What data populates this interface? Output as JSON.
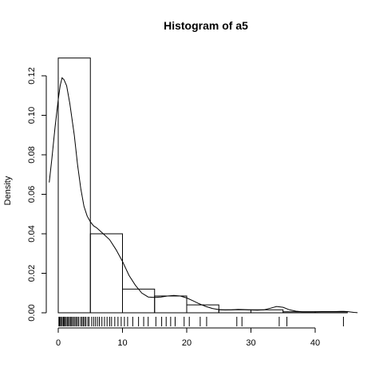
{
  "chart_data": {
    "type": "histogram",
    "title": "Histogram of  a5",
    "xlabel": "",
    "ylabel": "Density",
    "xlim": [
      -1,
      47
    ],
    "ylim": [
      0,
      0.13
    ],
    "bins": [
      {
        "x0": 0,
        "x1": 5,
        "density": 0.129
      },
      {
        "x0": 5,
        "x1": 10,
        "density": 0.04
      },
      {
        "x0": 10,
        "x1": 15,
        "density": 0.012
      },
      {
        "x0": 15,
        "x1": 20,
        "density": 0.0085
      },
      {
        "x0": 20,
        "x1": 25,
        "density": 0.004
      },
      {
        "x0": 25,
        "x1": 30,
        "density": 0.0015
      },
      {
        "x0": 30,
        "x1": 35,
        "density": 0.0015
      },
      {
        "x0": 35,
        "x1": 40,
        "density": 0.0005
      },
      {
        "x0": 40,
        "x1": 45,
        "density": 0.0005
      }
    ],
    "x_ticks": [
      {
        "value": 0,
        "label": "0"
      },
      {
        "value": 10,
        "label": "10"
      },
      {
        "value": 20,
        "label": "20"
      },
      {
        "value": 30,
        "label": "30"
      },
      {
        "value": 40,
        "label": "40"
      }
    ],
    "y_ticks": [
      {
        "value": 0,
        "label": "0.00"
      },
      {
        "value": 0.02,
        "label": "0.02"
      },
      {
        "value": 0.04,
        "label": "0.04"
      },
      {
        "value": 0.06,
        "label": "0.06"
      },
      {
        "value": 0.08,
        "label": "0.08"
      },
      {
        "value": 0.1,
        "label": "0.10"
      },
      {
        "value": 0.12,
        "label": "0.12"
      }
    ],
    "density_curve": [
      [
        -1.4,
        0.066
      ],
      [
        -1.0,
        0.078
      ],
      [
        -0.5,
        0.094
      ],
      [
        0.0,
        0.108
      ],
      [
        0.3,
        0.115
      ],
      [
        0.6,
        0.119
      ],
      [
        0.9,
        0.118
      ],
      [
        1.3,
        0.115
      ],
      [
        1.8,
        0.106
      ],
      [
        2.5,
        0.09
      ],
      [
        3.0,
        0.075
      ],
      [
        3.5,
        0.063
      ],
      [
        4.0,
        0.054
      ],
      [
        4.5,
        0.049
      ],
      [
        5.0,
        0.046
      ],
      [
        5.5,
        0.044
      ],
      [
        6.0,
        0.043
      ],
      [
        7.0,
        0.04
      ],
      [
        8.0,
        0.037
      ],
      [
        9.0,
        0.032
      ],
      [
        10.0,
        0.026
      ],
      [
        11.0,
        0.019
      ],
      [
        12.0,
        0.014
      ],
      [
        13.0,
        0.01
      ],
      [
        14.0,
        0.008
      ],
      [
        15.0,
        0.0078
      ],
      [
        16.0,
        0.008
      ],
      [
        17.0,
        0.0085
      ],
      [
        18.0,
        0.0088
      ],
      [
        19.0,
        0.0085
      ],
      [
        20.0,
        0.0075
      ],
      [
        21.0,
        0.006
      ],
      [
        22.0,
        0.0045
      ],
      [
        23.0,
        0.0032
      ],
      [
        24.0,
        0.0022
      ],
      [
        25.0,
        0.0016
      ],
      [
        26.0,
        0.0014
      ],
      [
        27.0,
        0.0015
      ],
      [
        28.0,
        0.0017
      ],
      [
        29.0,
        0.0016
      ],
      [
        30.0,
        0.0014
      ],
      [
        31.0,
        0.0013
      ],
      [
        32.0,
        0.0015
      ],
      [
        33.0,
        0.0023
      ],
      [
        34.0,
        0.0032
      ],
      [
        35.0,
        0.0028
      ],
      [
        36.0,
        0.0015
      ],
      [
        37.0,
        0.0008
      ],
      [
        38.0,
        0.0005
      ],
      [
        39.0,
        0.0005
      ],
      [
        40.0,
        0.0005
      ],
      [
        41.0,
        0.0006
      ],
      [
        42.0,
        0.0006
      ],
      [
        43.0,
        0.0006
      ],
      [
        44.0,
        0.0007
      ],
      [
        44.5,
        0.0007
      ],
      [
        45.0,
        0.0006
      ],
      [
        45.5,
        0.0004
      ],
      [
        46.0,
        0.0002
      ],
      [
        46.6,
        5e-05
      ]
    ],
    "rug": [
      0.1,
      0.2,
      0.3,
      0.5,
      0.6,
      0.8,
      0.9,
      1.0,
      1.2,
      1.4,
      1.5,
      1.7,
      1.9,
      2.0,
      2.2,
      2.4,
      2.6,
      2.8,
      3.0,
      3.2,
      3.5,
      3.7,
      3.9,
      4.1,
      4.3,
      4.6,
      4.8,
      5.2,
      5.5,
      5.8,
      6.1,
      6.4,
      6.8,
      7.2,
      7.6,
      8.0,
      8.3,
      8.8,
      9.3,
      9.8,
      10.3,
      10.8,
      11.6,
      12.5,
      13.3,
      14.0,
      15.2,
      16.1,
      16.8,
      17.5,
      18.2,
      19.6,
      20.4,
      22.1,
      23.1,
      27.8,
      28.6,
      34.4,
      35.6,
      44.4
    ]
  }
}
